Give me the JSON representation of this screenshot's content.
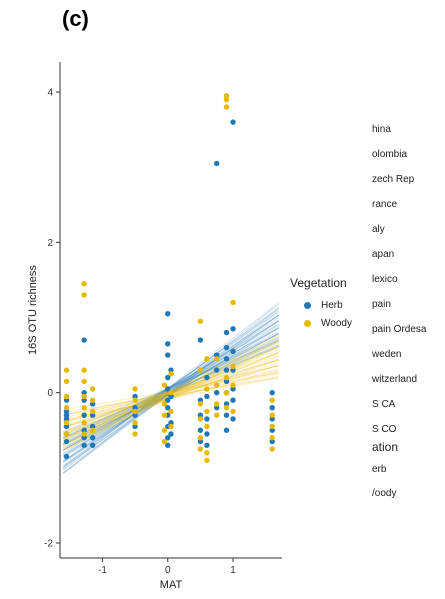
{
  "panel_label": "(c)",
  "chart_data": {
    "type": "scatter",
    "title": "",
    "xlabel": "MAT",
    "ylabel": "16S OTU richness",
    "xlim": [
      -1.65,
      1.75
    ],
    "ylim": [
      -2.2,
      4.4
    ],
    "xticks": [
      -1,
      0,
      1
    ],
    "yticks": [
      -2,
      0,
      2,
      4
    ],
    "grid": false,
    "series": [
      {
        "name": "Herb",
        "color": "#1f78b4",
        "trend": {
          "slope": 0.52,
          "intercept": 0.01
        },
        "points": [
          [
            -1.55,
            -0.1
          ],
          [
            -1.55,
            -0.25
          ],
          [
            -1.55,
            -0.35
          ],
          [
            -1.55,
            -0.45
          ],
          [
            -1.55,
            -0.55
          ],
          [
            -1.55,
            -0.65
          ],
          [
            -1.55,
            -0.85
          ],
          [
            -1.55,
            -0.3
          ],
          [
            -1.28,
            0.7
          ],
          [
            -1.28,
            0.0
          ],
          [
            -1.28,
            -0.1
          ],
          [
            -1.28,
            -0.3
          ],
          [
            -1.28,
            -0.5
          ],
          [
            -1.28,
            -0.6
          ],
          [
            -1.28,
            -0.7
          ],
          [
            -1.15,
            -0.15
          ],
          [
            -1.15,
            -0.3
          ],
          [
            -1.15,
            -0.45
          ],
          [
            -1.15,
            -0.6
          ],
          [
            -1.15,
            -0.7
          ],
          [
            -0.5,
            -0.05
          ],
          [
            -0.5,
            -0.2
          ],
          [
            -0.5,
            -0.3
          ],
          [
            -0.5,
            -0.45
          ],
          [
            0.0,
            1.05
          ],
          [
            0.0,
            0.65
          ],
          [
            0.0,
            0.5
          ],
          [
            0.0,
            0.2
          ],
          [
            0.0,
            0.05
          ],
          [
            0.0,
            -0.1
          ],
          [
            0.0,
            -0.2
          ],
          [
            0.0,
            -0.3
          ],
          [
            0.0,
            -0.45
          ],
          [
            0.0,
            -0.6
          ],
          [
            0.0,
            -0.7
          ],
          [
            0.05,
            0.3
          ],
          [
            0.05,
            -0.05
          ],
          [
            0.05,
            -0.4
          ],
          [
            0.05,
            -0.55
          ],
          [
            0.5,
            0.7
          ],
          [
            0.5,
            -0.1
          ],
          [
            0.5,
            -0.3
          ],
          [
            0.5,
            -0.5
          ],
          [
            0.5,
            -0.65
          ],
          [
            0.6,
            0.2
          ],
          [
            0.6,
            -0.05
          ],
          [
            0.6,
            -0.35
          ],
          [
            0.6,
            -0.55
          ],
          [
            0.6,
            -0.7
          ],
          [
            0.75,
            3.05
          ],
          [
            0.75,
            0.5
          ],
          [
            0.75,
            0.3
          ],
          [
            0.75,
            0.0
          ],
          [
            0.75,
            -0.2
          ],
          [
            0.9,
            0.8
          ],
          [
            0.9,
            0.6
          ],
          [
            0.9,
            0.45
          ],
          [
            0.9,
            0.3
          ],
          [
            0.9,
            0.15
          ],
          [
            0.9,
            0.0
          ],
          [
            0.9,
            -0.15
          ],
          [
            0.9,
            -0.3
          ],
          [
            0.9,
            -0.5
          ],
          [
            1.0,
            3.6
          ],
          [
            1.0,
            0.85
          ],
          [
            1.0,
            0.55
          ],
          [
            1.0,
            0.3
          ],
          [
            1.0,
            0.05
          ],
          [
            1.0,
            -0.1
          ],
          [
            1.0,
            -0.35
          ],
          [
            1.6,
            0.0
          ],
          [
            1.6,
            -0.2
          ],
          [
            1.6,
            -0.35
          ],
          [
            1.6,
            -0.5
          ],
          [
            1.6,
            -0.65
          ]
        ]
      },
      {
        "name": "Woody",
        "color": "#e6b800",
        "trend": {
          "slope": 0.3,
          "intercept": -0.04
        },
        "points": [
          [
            -1.55,
            0.3
          ],
          [
            -1.55,
            0.15
          ],
          [
            -1.55,
            -0.05
          ],
          [
            -1.55,
            -0.2
          ],
          [
            -1.55,
            -0.4
          ],
          [
            -1.55,
            -0.55
          ],
          [
            -1.28,
            1.45
          ],
          [
            -1.28,
            1.3
          ],
          [
            -1.28,
            0.3
          ],
          [
            -1.28,
            0.15
          ],
          [
            -1.28,
            -0.05
          ],
          [
            -1.28,
            -0.2
          ],
          [
            -1.28,
            -0.4
          ],
          [
            -1.28,
            -0.55
          ],
          [
            -1.15,
            0.05
          ],
          [
            -1.15,
            -0.1
          ],
          [
            -1.15,
            -0.25
          ],
          [
            -1.15,
            -0.5
          ],
          [
            -0.5,
            0.05
          ],
          [
            -0.5,
            -0.1
          ],
          [
            -0.5,
            -0.25
          ],
          [
            -0.5,
            -0.4
          ],
          [
            -0.5,
            -0.55
          ],
          [
            -0.05,
            0.1
          ],
          [
            -0.05,
            -0.15
          ],
          [
            -0.05,
            -0.3
          ],
          [
            -0.05,
            -0.5
          ],
          [
            -0.05,
            -0.65
          ],
          [
            0.05,
            0.25
          ],
          [
            0.05,
            0.0
          ],
          [
            0.05,
            -0.25
          ],
          [
            0.05,
            -0.45
          ],
          [
            0.5,
            0.95
          ],
          [
            0.5,
            0.3
          ],
          [
            0.5,
            -0.15
          ],
          [
            0.5,
            -0.35
          ],
          [
            0.5,
            -0.6
          ],
          [
            0.5,
            -0.75
          ],
          [
            0.6,
            0.45
          ],
          [
            0.6,
            0.05
          ],
          [
            0.6,
            -0.25
          ],
          [
            0.6,
            -0.45
          ],
          [
            0.6,
            -0.8
          ],
          [
            0.6,
            -0.9
          ],
          [
            0.75,
            0.45
          ],
          [
            0.75,
            0.1
          ],
          [
            0.75,
            -0.15
          ],
          [
            0.75,
            -0.3
          ],
          [
            0.9,
            3.95
          ],
          [
            0.9,
            3.9
          ],
          [
            0.9,
            3.8
          ],
          [
            0.9,
            0.2
          ],
          [
            0.9,
            0.0
          ],
          [
            0.9,
            -0.2
          ],
          [
            1.0,
            1.2
          ],
          [
            1.0,
            0.35
          ],
          [
            1.0,
            0.1
          ],
          [
            1.0,
            -0.25
          ],
          [
            1.6,
            -0.1
          ],
          [
            1.6,
            -0.3
          ],
          [
            1.6,
            -0.45
          ],
          [
            1.6,
            -0.6
          ],
          [
            1.6,
            -0.75
          ]
        ]
      }
    ]
  },
  "legend": {
    "title": "Vegetation",
    "items": [
      {
        "label": "Herb",
        "color": "#1f78b4"
      },
      {
        "label": "Woody",
        "color": "#e6b800"
      }
    ]
  },
  "country_legend": {
    "items": [
      "hina",
      "olombia",
      "zech Rep",
      "rance",
      "aly",
      "apan",
      "lexico",
      "pain",
      "pain Ordesa",
      "weden",
      "witzerland",
      "S CA",
      "S CO"
    ]
  },
  "vegetation_legend_2": {
    "title": "ation",
    "items": [
      "erb",
      "/oody"
    ]
  }
}
